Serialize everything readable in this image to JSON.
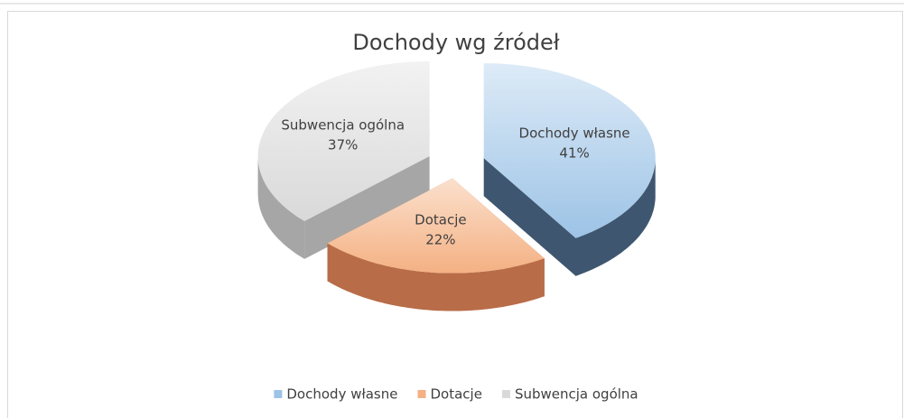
{
  "chart_data": {
    "type": "pie3d",
    "title": "Dochody wg źródeł",
    "categories": [
      "Dochody własne",
      "Dotacje",
      "Subwencja ogólna"
    ],
    "values": [
      41,
      22,
      37
    ],
    "value_labels": [
      "41%",
      "22%",
      "37%"
    ],
    "colors": [
      "#9dc3e6",
      "#f4b183",
      "#d9d9d9"
    ],
    "legend": "bottom"
  }
}
